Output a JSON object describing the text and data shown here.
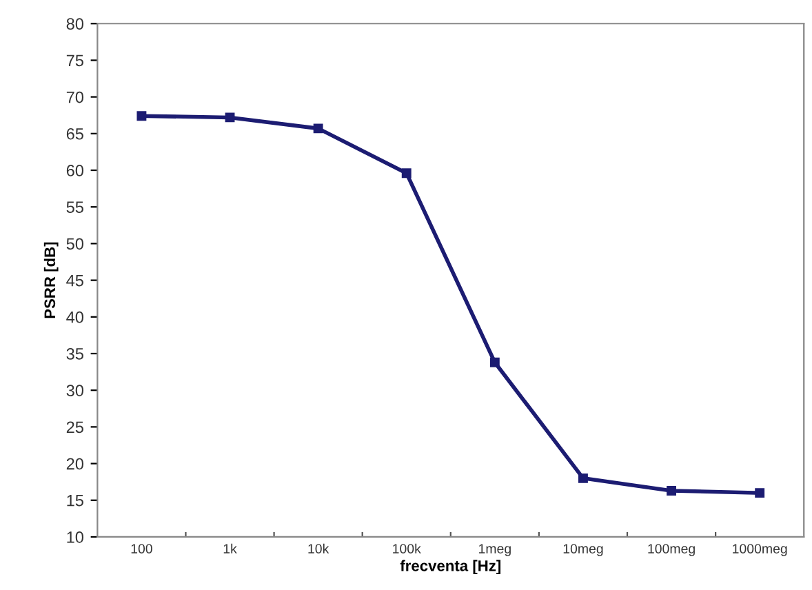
{
  "chart_data": {
    "type": "line",
    "xlabel": "frecventa [Hz]",
    "ylabel": "PSRR [dB]",
    "categories": [
      "100",
      "1k",
      "10k",
      "100k",
      "1meg",
      "10meg",
      "100meg",
      "1000meg"
    ],
    "series": [
      {
        "color": "#1c1c72",
        "values": [
          67.4,
          67.2,
          65.7,
          59.6,
          33.8,
          18.0,
          16.3,
          16.0
        ]
      }
    ],
    "ylim": [
      10,
      80
    ],
    "yticks": [
      10,
      15,
      20,
      25,
      30,
      35,
      40,
      45,
      50,
      55,
      60,
      65,
      70,
      75,
      80
    ],
    "marker": "square",
    "line_style": "solid",
    "grid": false,
    "legend": false
  }
}
